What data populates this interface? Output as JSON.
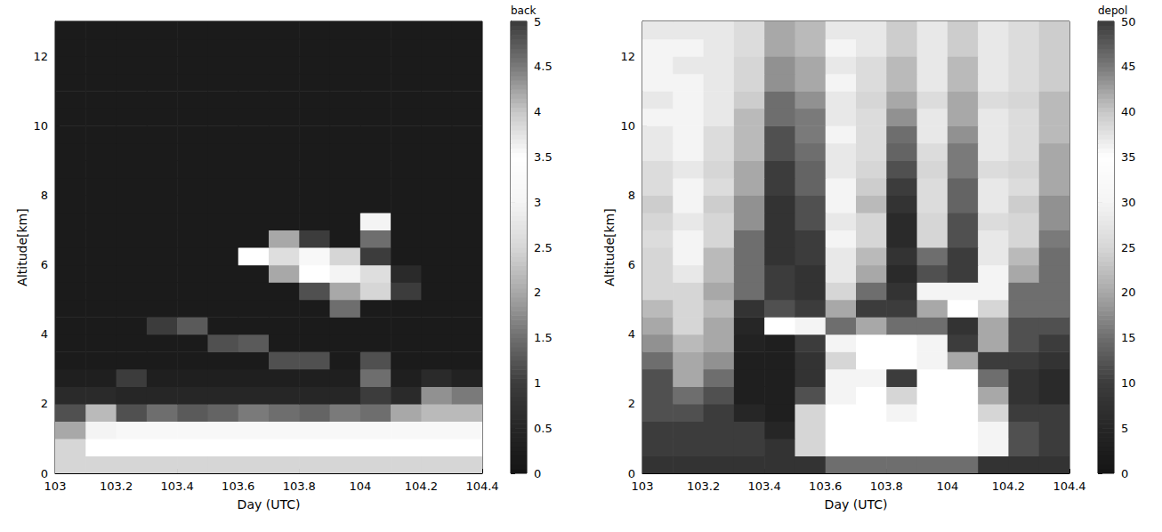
{
  "chart_data": [
    {
      "type": "heatmap",
      "x_label": "Day (UTC)",
      "y_label": "Altitude[km]",
      "xlim": [
        103,
        104.4
      ],
      "xticks": [
        103,
        103.2,
        103.4,
        103.6,
        103.8,
        104,
        104.2,
        104.4
      ],
      "ylim": [
        0,
        13
      ],
      "yticks": [
        0,
        2,
        4,
        6,
        8,
        10,
        12
      ],
      "colorbar_label": "back",
      "clim": [
        0,
        5
      ],
      "cticks": [
        0,
        0.5,
        1,
        1.5,
        2,
        2.5,
        3,
        3.5,
        4,
        4.5,
        5
      ],
      "x": [
        103.05,
        103.15,
        103.25,
        103.35,
        103.45,
        103.55,
        103.65,
        103.75,
        103.85,
        103.95,
        104.05,
        104.15,
        104.25,
        104.35
      ],
      "y": [
        0.25,
        0.75,
        1.25,
        1.75,
        2.25,
        2.75,
        3.25,
        3.75,
        4.25,
        4.75,
        5.25,
        5.75,
        6.25,
        6.75,
        7.25,
        7.75,
        8.25,
        8.75,
        9.25,
        9.75,
        10.25,
        10.75,
        11.25,
        11.75,
        12.25,
        12.75
      ],
      "values": [
        [
          2.5,
          2.5,
          2.5,
          2.5,
          2.5,
          2.5,
          2.5,
          2.5,
          2.5,
          2.5,
          2.5,
          2.5,
          2.5,
          2.5
        ],
        [
          2.5,
          3.5,
          3.5,
          3.5,
          3.5,
          3.5,
          3.5,
          3.5,
          3.5,
          3.5,
          3.5,
          3.5,
          3.5,
          3.5
        ],
        [
          2.0,
          3.0,
          3.2,
          3.2,
          3.2,
          3.2,
          3.2,
          3.2,
          3.2,
          3.2,
          3.2,
          3.2,
          3.2,
          3.2
        ],
        [
          1.2,
          2.2,
          1.2,
          1.5,
          1.3,
          1.4,
          1.6,
          1.5,
          1.4,
          1.6,
          1.5,
          2.0,
          2.2,
          2.2
        ],
        [
          0.6,
          0.6,
          0.5,
          0.5,
          0.5,
          0.5,
          0.5,
          0.5,
          0.5,
          0.5,
          1.0,
          0.6,
          1.8,
          1.6
        ],
        [
          0.3,
          0.3,
          1.0,
          0.3,
          0.3,
          0.3,
          0.3,
          0.3,
          0.3,
          0.3,
          1.5,
          0.3,
          0.6,
          0.4
        ],
        [
          0.2,
          0.2,
          0.2,
          0.2,
          0.2,
          0.2,
          0.2,
          1.2,
          1.2,
          0.2,
          1.2,
          0.2,
          0.2,
          0.2
        ],
        [
          0.2,
          0.2,
          0.2,
          0.2,
          0.2,
          1.2,
          1.3,
          0.2,
          0.2,
          0.2,
          0.2,
          0.2,
          0.2,
          0.2
        ],
        [
          0.2,
          0.2,
          0.2,
          1.0,
          1.3,
          0.2,
          0.2,
          0.2,
          0.2,
          0.2,
          0.2,
          0.2,
          0.2,
          0.2
        ],
        [
          0.2,
          0.2,
          0.2,
          0.2,
          0.2,
          0.2,
          0.2,
          0.2,
          0.2,
          1.5,
          0.2,
          0.2,
          0.2,
          0.2
        ],
        [
          0.2,
          0.2,
          0.2,
          0.2,
          0.2,
          0.2,
          0.2,
          0.2,
          1.2,
          2.0,
          2.5,
          1.0,
          0.2,
          0.2
        ],
        [
          0.2,
          0.2,
          0.2,
          0.2,
          0.2,
          0.2,
          0.2,
          2.0,
          3.5,
          3.0,
          3.8,
          0.6,
          0.2,
          0.2
        ],
        [
          0.2,
          0.2,
          0.2,
          0.2,
          0.2,
          0.2,
          3.5,
          3.8,
          3.2,
          2.5,
          1.0,
          0.2,
          0.2,
          0.2
        ],
        [
          0.2,
          0.2,
          0.2,
          0.2,
          0.2,
          0.2,
          0.2,
          2.0,
          1.0,
          0.2,
          1.5,
          0.2,
          0.2,
          0.2
        ],
        [
          0.2,
          0.2,
          0.2,
          0.2,
          0.2,
          0.2,
          0.2,
          0.2,
          0.2,
          0.2,
          3.0,
          0.2,
          0.2,
          0.2
        ],
        [
          0.2,
          0.2,
          0.2,
          0.2,
          0.2,
          0.2,
          0.2,
          0.2,
          0.2,
          0.2,
          0.2,
          0.2,
          0.2,
          0.2
        ],
        [
          0.2,
          0.2,
          0.2,
          0.2,
          0.2,
          0.2,
          0.2,
          0.2,
          0.2,
          0.2,
          0.2,
          0.2,
          0.2,
          0.2
        ],
        [
          0.2,
          0.2,
          0.2,
          0.2,
          0.2,
          0.2,
          0.2,
          0.2,
          0.2,
          0.2,
          0.2,
          0.2,
          0.2,
          0.2
        ],
        [
          0.2,
          0.2,
          0.2,
          0.2,
          0.2,
          0.2,
          0.2,
          0.2,
          0.2,
          0.2,
          0.2,
          0.2,
          0.2,
          0.2
        ],
        [
          0.2,
          0.2,
          0.2,
          0.2,
          0.2,
          0.2,
          0.2,
          0.2,
          0.2,
          0.2,
          0.2,
          0.2,
          0.2,
          0.2
        ],
        [
          0.2,
          0.2,
          0.2,
          0.2,
          0.2,
          0.2,
          0.2,
          0.2,
          0.2,
          0.2,
          0.2,
          0.2,
          0.2,
          0.2
        ],
        [
          0.2,
          0.2,
          0.2,
          0.2,
          0.2,
          0.2,
          0.2,
          0.2,
          0.2,
          0.2,
          0.2,
          0.2,
          0.2,
          0.2
        ],
        [
          0.2,
          0.2,
          0.2,
          0.2,
          0.2,
          0.2,
          0.2,
          0.2,
          0.2,
          0.2,
          0.2,
          0.2,
          0.2,
          0.2
        ],
        [
          0.2,
          0.2,
          0.2,
          0.2,
          0.2,
          0.2,
          0.2,
          0.2,
          0.2,
          0.2,
          0.2,
          0.2,
          0.2,
          0.2
        ],
        [
          0.2,
          0.2,
          0.2,
          0.2,
          0.2,
          0.2,
          0.2,
          0.2,
          0.2,
          0.2,
          0.2,
          0.2,
          0.2,
          0.2
        ],
        [
          0.2,
          0.2,
          0.2,
          0.2,
          0.2,
          0.2,
          0.2,
          0.2,
          0.2,
          0.2,
          0.2,
          0.2,
          0.2,
          0.2
        ]
      ]
    },
    {
      "type": "heatmap",
      "x_label": "Day (UTC)",
      "y_label": "Altitude[km]",
      "xlim": [
        103,
        104.4
      ],
      "xticks": [
        103,
        103.2,
        103.4,
        103.6,
        103.8,
        104,
        104.2,
        104.4
      ],
      "ylim": [
        0,
        13
      ],
      "yticks": [
        0,
        2,
        4,
        6,
        8,
        10,
        12
      ],
      "colorbar_label": "depol",
      "clim": [
        0,
        50
      ],
      "cticks": [
        0,
        5,
        10,
        15,
        20,
        25,
        30,
        35,
        40,
        45,
        50
      ],
      "x": [
        103.05,
        103.15,
        103.25,
        103.35,
        103.45,
        103.55,
        103.65,
        103.75,
        103.85,
        103.95,
        104.05,
        104.15,
        104.25,
        104.35
      ],
      "y": [
        0.25,
        0.75,
        1.25,
        1.75,
        2.25,
        2.75,
        3.25,
        3.75,
        4.25,
        4.75,
        5.25,
        5.75,
        6.25,
        6.75,
        7.25,
        7.75,
        8.25,
        8.75,
        9.25,
        9.75,
        10.25,
        10.75,
        11.25,
        11.75,
        12.25,
        12.75
      ],
      "values": [
        [
          8,
          8,
          8,
          8,
          8,
          8,
          15,
          15,
          15,
          15,
          15,
          8,
          8,
          8
        ],
        [
          10,
          10,
          10,
          10,
          8,
          25,
          35,
          35,
          35,
          35,
          35,
          30,
          12,
          10
        ],
        [
          10,
          10,
          10,
          10,
          5,
          25,
          35,
          35,
          35,
          35,
          35,
          30,
          12,
          10
        ],
        [
          12,
          12,
          10,
          5,
          3,
          25,
          35,
          35,
          30,
          35,
          35,
          25,
          10,
          10
        ],
        [
          12,
          15,
          12,
          3,
          3,
          12,
          30,
          35,
          25,
          35,
          35,
          20,
          8,
          6
        ],
        [
          12,
          20,
          15,
          3,
          3,
          8,
          30,
          30,
          10,
          35,
          35,
          15,
          8,
          6
        ],
        [
          15,
          20,
          18,
          3,
          3,
          8,
          25,
          35,
          35,
          30,
          20,
          10,
          10,
          8
        ],
        [
          18,
          22,
          20,
          4,
          3,
          10,
          30,
          35,
          35,
          30,
          10,
          20,
          12,
          10
        ],
        [
          20,
          25,
          20,
          5,
          35,
          30,
          15,
          20,
          15,
          15,
          8,
          20,
          12,
          12
        ],
        [
          22,
          25,
          22,
          8,
          12,
          10,
          20,
          10,
          10,
          20,
          35,
          25,
          15,
          15
        ],
        [
          25,
          25,
          20,
          15,
          10,
          8,
          25,
          15,
          8,
          30,
          30,
          30,
          15,
          15
        ],
        [
          25,
          28,
          22,
          15,
          10,
          8,
          28,
          20,
          6,
          12,
          10,
          30,
          20,
          15
        ],
        [
          25,
          30,
          22,
          15,
          8,
          10,
          28,
          22,
          8,
          15,
          10,
          28,
          22,
          15
        ],
        [
          26,
          30,
          25,
          15,
          8,
          10,
          30,
          25,
          6,
          25,
          12,
          28,
          25,
          16
        ],
        [
          25,
          28,
          25,
          18,
          8,
          12,
          28,
          25,
          6,
          25,
          12,
          26,
          25,
          18
        ],
        [
          24,
          30,
          24,
          18,
          8,
          12,
          30,
          22,
          8,
          26,
          14,
          28,
          24,
          18
        ],
        [
          26,
          30,
          26,
          20,
          10,
          14,
          30,
          24,
          10,
          26,
          14,
          28,
          26,
          20
        ],
        [
          26,
          28,
          25,
          20,
          10,
          14,
          28,
          25,
          12,
          25,
          16,
          26,
          25,
          20
        ],
        [
          28,
          30,
          26,
          22,
          12,
          15,
          28,
          26,
          14,
          26,
          16,
          28,
          26,
          20
        ],
        [
          28,
          30,
          26,
          22,
          12,
          16,
          30,
          26,
          15,
          28,
          18,
          28,
          26,
          22
        ],
        [
          30,
          30,
          28,
          22,
          15,
          16,
          28,
          26,
          18,
          28,
          20,
          28,
          26,
          22
        ],
        [
          28,
          30,
          28,
          24,
          15,
          18,
          28,
          25,
          20,
          26,
          20,
          26,
          25,
          22
        ],
        [
          30,
          30,
          28,
          25,
          18,
          20,
          30,
          26,
          22,
          28,
          22,
          28,
          26,
          24
        ],
        [
          30,
          28,
          28,
          25,
          18,
          20,
          28,
          26,
          22,
          28,
          22,
          28,
          26,
          24
        ],
        [
          30,
          30,
          28,
          26,
          20,
          22,
          30,
          28,
          24,
          28,
          24,
          28,
          26,
          24
        ],
        [
          28,
          28,
          28,
          26,
          20,
          22,
          28,
          28,
          24,
          28,
          24,
          28,
          26,
          24
        ]
      ]
    }
  ]
}
